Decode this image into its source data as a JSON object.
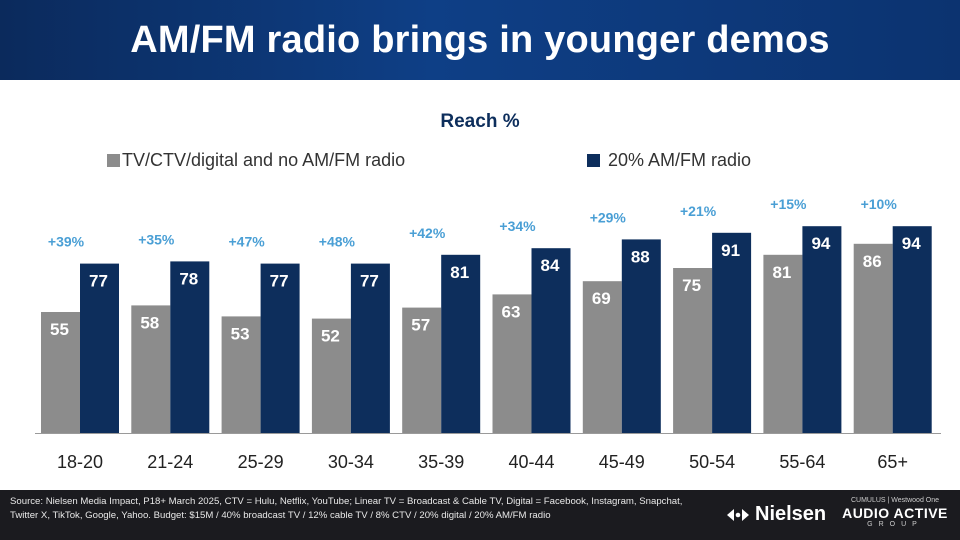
{
  "header": {
    "title": "AM/FM radio brings in younger demos"
  },
  "chart_data": {
    "type": "bar",
    "title": "Reach %",
    "categories": [
      "18-20",
      "21-24",
      "25-29",
      "30-34",
      "35-39",
      "40-44",
      "45-49",
      "50-54",
      "55-64",
      "65+"
    ],
    "series": [
      {
        "name": "TV/CTV/digital and no AM/FM radio",
        "color": "#8c8c8c",
        "values": [
          55,
          58,
          53,
          52,
          57,
          63,
          69,
          75,
          81,
          86
        ]
      },
      {
        "name": "20% AM/FM radio",
        "color": "#0d2e5c",
        "values": [
          77,
          78,
          77,
          77,
          81,
          84,
          88,
          91,
          94,
          94
        ]
      }
    ],
    "annotations": [
      "+39%",
      "+35%",
      "+47%",
      "+48%",
      "+42%",
      "+34%",
      "+29%",
      "+21%",
      "+15%",
      "+10%"
    ],
    "annotation_color": "#4a9fd5",
    "ylim": [
      0,
      100
    ]
  },
  "footer": {
    "source": "Source: Nielsen Media Impact, P18+ March 2025, CTV = Hulu, Netflix, YouTube; Linear TV = Broadcast & Cable TV, Digital = Facebook, Instagram, Snapchat, Twitter X, TikTok, Google, Yahoo. Budget: $15M / 40% broadcast TV / 12% cable TV / 8% CTV / 20% digital / 20% AM/FM radio",
    "nielsen_logo": "Nielsen",
    "aag_top": "CUMULUS | Westwood One",
    "aag_name": "AUDIO ACTIVE",
    "aag_group": "GROUP"
  }
}
